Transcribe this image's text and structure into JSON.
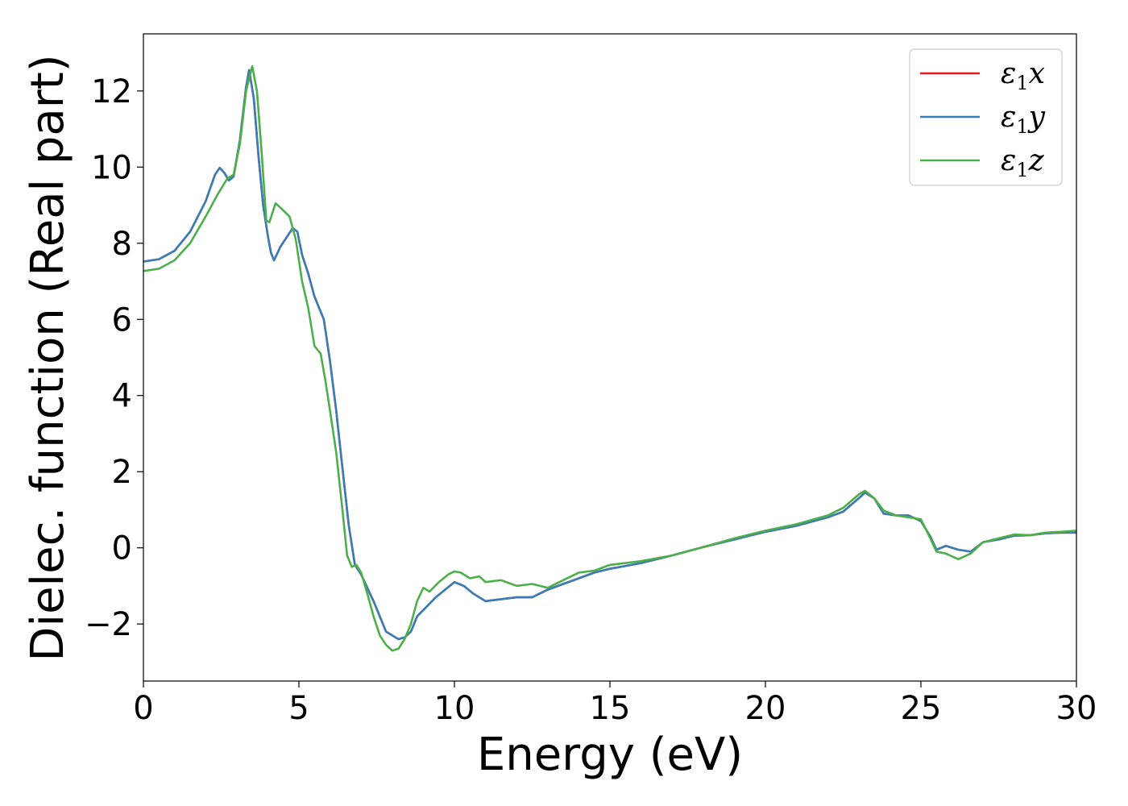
{
  "chart_data": {
    "type": "line",
    "title": "",
    "xlabel": "Energy (eV)",
    "ylabel": "Dielec. function (Real part)",
    "xlim": [
      0,
      30
    ],
    "ylim": [
      -3.5,
      13.5
    ],
    "xticks": [
      0,
      5,
      10,
      15,
      20,
      25,
      30
    ],
    "xtick_labels": [
      "0",
      "5",
      "10",
      "15",
      "20",
      "25",
      "30"
    ],
    "yticks": [
      -2,
      0,
      2,
      4,
      6,
      8,
      10,
      12
    ],
    "ytick_labels": [
      "−2",
      "0",
      "2",
      "4",
      "6",
      "8",
      "10",
      "12"
    ],
    "grid": false,
    "legend_position": "top-right",
    "series": [
      {
        "name": "ε1x",
        "color": "#e41a1c",
        "points": [
          [
            0,
            7.52
          ],
          [
            0.5,
            7.58
          ],
          [
            1.0,
            7.8
          ],
          [
            1.5,
            8.3
          ],
          [
            2.0,
            9.1
          ],
          [
            2.3,
            9.8
          ],
          [
            2.45,
            9.98
          ],
          [
            2.6,
            9.85
          ],
          [
            2.75,
            9.65
          ],
          [
            2.9,
            9.75
          ],
          [
            3.1,
            10.7
          ],
          [
            3.3,
            12.1
          ],
          [
            3.4,
            12.55
          ],
          [
            3.55,
            11.8
          ],
          [
            3.7,
            10.3
          ],
          [
            3.85,
            9.0
          ],
          [
            4.0,
            8.2
          ],
          [
            4.1,
            7.75
          ],
          [
            4.2,
            7.55
          ],
          [
            4.4,
            7.9
          ],
          [
            4.6,
            8.15
          ],
          [
            4.8,
            8.4
          ],
          [
            4.95,
            8.3
          ],
          [
            5.1,
            7.7
          ],
          [
            5.3,
            7.2
          ],
          [
            5.5,
            6.6
          ],
          [
            5.8,
            6.0
          ],
          [
            6.0,
            4.9
          ],
          [
            6.2,
            3.6
          ],
          [
            6.4,
            2.1
          ],
          [
            6.6,
            0.6
          ],
          [
            6.8,
            -0.45
          ],
          [
            7.0,
            -0.7
          ],
          [
            7.2,
            -1.05
          ],
          [
            7.4,
            -1.4
          ],
          [
            7.6,
            -1.8
          ],
          [
            7.8,
            -2.2
          ],
          [
            8.0,
            -2.3
          ],
          [
            8.2,
            -2.4
          ],
          [
            8.4,
            -2.35
          ],
          [
            8.6,
            -2.2
          ],
          [
            8.8,
            -1.8
          ],
          [
            9.1,
            -1.55
          ],
          [
            9.4,
            -1.3
          ],
          [
            9.7,
            -1.1
          ],
          [
            10.0,
            -0.9
          ],
          [
            10.3,
            -1.0
          ],
          [
            10.6,
            -1.2
          ],
          [
            11.0,
            -1.4
          ],
          [
            11.5,
            -1.35
          ],
          [
            12.0,
            -1.3
          ],
          [
            12.5,
            -1.3
          ],
          [
            13.0,
            -1.1
          ],
          [
            13.5,
            -0.95
          ],
          [
            14.0,
            -0.8
          ],
          [
            14.5,
            -0.65
          ],
          [
            15.0,
            -0.55
          ],
          [
            16.0,
            -0.4
          ],
          [
            17.0,
            -0.2
          ],
          [
            18.0,
            0.02
          ],
          [
            19.0,
            0.22
          ],
          [
            20.0,
            0.42
          ],
          [
            21.0,
            0.58
          ],
          [
            22.0,
            0.8
          ],
          [
            22.5,
            0.95
          ],
          [
            23.0,
            1.3
          ],
          [
            23.2,
            1.45
          ],
          [
            23.5,
            1.3
          ],
          [
            23.8,
            0.9
          ],
          [
            24.2,
            0.85
          ],
          [
            24.6,
            0.85
          ],
          [
            25.0,
            0.7
          ],
          [
            25.3,
            0.3
          ],
          [
            25.5,
            -0.05
          ],
          [
            25.8,
            0.05
          ],
          [
            26.2,
            -0.05
          ],
          [
            26.6,
            -0.1
          ],
          [
            27.0,
            0.15
          ],
          [
            27.5,
            0.22
          ],
          [
            28.0,
            0.32
          ],
          [
            28.5,
            0.33
          ],
          [
            29.0,
            0.38
          ],
          [
            29.5,
            0.4
          ],
          [
            30,
            0.4
          ]
        ]
      },
      {
        "name": "ε1y",
        "color": "#377eb8",
        "points": [
          [
            0,
            7.52
          ],
          [
            0.5,
            7.58
          ],
          [
            1.0,
            7.8
          ],
          [
            1.5,
            8.3
          ],
          [
            2.0,
            9.1
          ],
          [
            2.3,
            9.8
          ],
          [
            2.45,
            9.98
          ],
          [
            2.6,
            9.85
          ],
          [
            2.75,
            9.65
          ],
          [
            2.9,
            9.75
          ],
          [
            3.1,
            10.7
          ],
          [
            3.3,
            12.1
          ],
          [
            3.4,
            12.55
          ],
          [
            3.55,
            11.8
          ],
          [
            3.7,
            10.3
          ],
          [
            3.85,
            9.0
          ],
          [
            4.0,
            8.2
          ],
          [
            4.1,
            7.75
          ],
          [
            4.2,
            7.55
          ],
          [
            4.4,
            7.9
          ],
          [
            4.6,
            8.15
          ],
          [
            4.8,
            8.4
          ],
          [
            4.95,
            8.3
          ],
          [
            5.1,
            7.7
          ],
          [
            5.3,
            7.2
          ],
          [
            5.5,
            6.6
          ],
          [
            5.8,
            6.0
          ],
          [
            6.0,
            4.9
          ],
          [
            6.2,
            3.6
          ],
          [
            6.4,
            2.1
          ],
          [
            6.6,
            0.6
          ],
          [
            6.8,
            -0.45
          ],
          [
            7.0,
            -0.7
          ],
          [
            7.2,
            -1.05
          ],
          [
            7.4,
            -1.4
          ],
          [
            7.6,
            -1.8
          ],
          [
            7.8,
            -2.2
          ],
          [
            8.0,
            -2.3
          ],
          [
            8.2,
            -2.4
          ],
          [
            8.4,
            -2.35
          ],
          [
            8.6,
            -2.2
          ],
          [
            8.8,
            -1.8
          ],
          [
            9.1,
            -1.55
          ],
          [
            9.4,
            -1.3
          ],
          [
            9.7,
            -1.1
          ],
          [
            10.0,
            -0.9
          ],
          [
            10.3,
            -1.0
          ],
          [
            10.6,
            -1.2
          ],
          [
            11.0,
            -1.4
          ],
          [
            11.5,
            -1.35
          ],
          [
            12.0,
            -1.3
          ],
          [
            12.5,
            -1.3
          ],
          [
            13.0,
            -1.1
          ],
          [
            13.5,
            -0.95
          ],
          [
            14.0,
            -0.8
          ],
          [
            14.5,
            -0.65
          ],
          [
            15.0,
            -0.55
          ],
          [
            16.0,
            -0.4
          ],
          [
            17.0,
            -0.2
          ],
          [
            18.0,
            0.02
          ],
          [
            19.0,
            0.22
          ],
          [
            20.0,
            0.42
          ],
          [
            21.0,
            0.58
          ],
          [
            22.0,
            0.8
          ],
          [
            22.5,
            0.95
          ],
          [
            23.0,
            1.3
          ],
          [
            23.2,
            1.45
          ],
          [
            23.5,
            1.3
          ],
          [
            23.8,
            0.9
          ],
          [
            24.2,
            0.85
          ],
          [
            24.6,
            0.85
          ],
          [
            25.0,
            0.7
          ],
          [
            25.3,
            0.3
          ],
          [
            25.5,
            -0.05
          ],
          [
            25.8,
            0.05
          ],
          [
            26.2,
            -0.05
          ],
          [
            26.6,
            -0.1
          ],
          [
            27.0,
            0.15
          ],
          [
            27.5,
            0.22
          ],
          [
            28.0,
            0.32
          ],
          [
            28.5,
            0.33
          ],
          [
            29.0,
            0.38
          ],
          [
            29.5,
            0.4
          ],
          [
            30,
            0.4
          ]
        ]
      },
      {
        "name": "ε1z",
        "color": "#4daf4a",
        "points": [
          [
            0,
            7.27
          ],
          [
            0.5,
            7.33
          ],
          [
            1.0,
            7.55
          ],
          [
            1.5,
            8.0
          ],
          [
            2.0,
            8.7
          ],
          [
            2.4,
            9.3
          ],
          [
            2.7,
            9.7
          ],
          [
            2.9,
            9.8
          ],
          [
            3.1,
            10.6
          ],
          [
            3.3,
            12.0
          ],
          [
            3.5,
            12.65
          ],
          [
            3.65,
            12.0
          ],
          [
            3.8,
            10.4
          ],
          [
            3.95,
            8.6
          ],
          [
            4.05,
            8.55
          ],
          [
            4.25,
            9.05
          ],
          [
            4.45,
            8.9
          ],
          [
            4.7,
            8.7
          ],
          [
            4.9,
            8.1
          ],
          [
            5.1,
            7.0
          ],
          [
            5.3,
            6.3
          ],
          [
            5.5,
            5.3
          ],
          [
            5.7,
            5.1
          ],
          [
            5.85,
            4.4
          ],
          [
            6.0,
            3.6
          ],
          [
            6.2,
            2.5
          ],
          [
            6.4,
            1.0
          ],
          [
            6.55,
            -0.2
          ],
          [
            6.7,
            -0.5
          ],
          [
            6.85,
            -0.45
          ],
          [
            7.0,
            -0.65
          ],
          [
            7.2,
            -1.2
          ],
          [
            7.4,
            -1.8
          ],
          [
            7.6,
            -2.3
          ],
          [
            7.8,
            -2.55
          ],
          [
            8.0,
            -2.7
          ],
          [
            8.2,
            -2.65
          ],
          [
            8.4,
            -2.4
          ],
          [
            8.6,
            -2.0
          ],
          [
            8.8,
            -1.4
          ],
          [
            9.0,
            -1.05
          ],
          [
            9.2,
            -1.15
          ],
          [
            9.5,
            -0.9
          ],
          [
            9.8,
            -0.7
          ],
          [
            10.0,
            -0.62
          ],
          [
            10.2,
            -0.65
          ],
          [
            10.5,
            -0.8
          ],
          [
            10.8,
            -0.75
          ],
          [
            11.0,
            -0.9
          ],
          [
            11.5,
            -0.85
          ],
          [
            12.0,
            -1.0
          ],
          [
            12.5,
            -0.95
          ],
          [
            13.0,
            -1.05
          ],
          [
            13.5,
            -0.85
          ],
          [
            14.0,
            -0.65
          ],
          [
            14.5,
            -0.6
          ],
          [
            15.0,
            -0.45
          ],
          [
            16.0,
            -0.35
          ],
          [
            17.0,
            -0.2
          ],
          [
            18.0,
            0.02
          ],
          [
            19.0,
            0.25
          ],
          [
            20.0,
            0.45
          ],
          [
            21.0,
            0.62
          ],
          [
            22.0,
            0.85
          ],
          [
            22.5,
            1.05
          ],
          [
            23.0,
            1.4
          ],
          [
            23.2,
            1.5
          ],
          [
            23.5,
            1.3
          ],
          [
            23.8,
            0.98
          ],
          [
            24.2,
            0.85
          ],
          [
            24.6,
            0.8
          ],
          [
            25.0,
            0.75
          ],
          [
            25.3,
            0.25
          ],
          [
            25.5,
            -0.1
          ],
          [
            25.8,
            -0.15
          ],
          [
            26.2,
            -0.3
          ],
          [
            26.6,
            -0.15
          ],
          [
            27.0,
            0.15
          ],
          [
            27.5,
            0.25
          ],
          [
            28.0,
            0.35
          ],
          [
            28.5,
            0.33
          ],
          [
            29.0,
            0.4
          ],
          [
            29.5,
            0.42
          ],
          [
            30,
            0.45
          ]
        ]
      }
    ]
  }
}
